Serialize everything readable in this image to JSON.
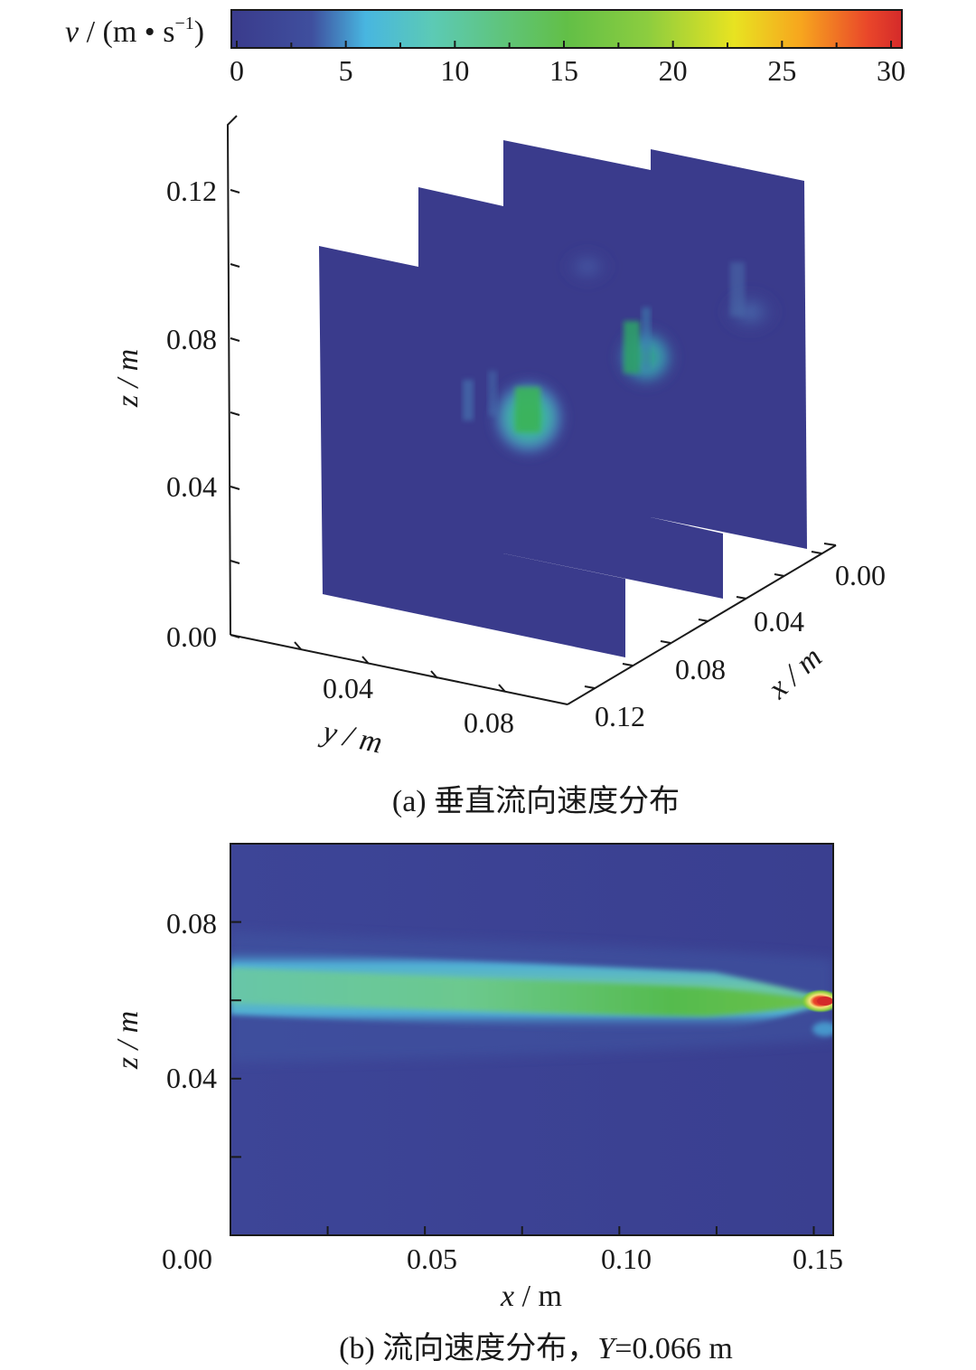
{
  "colors": {
    "colormap": [
      "#3a3b8c",
      "#3f4f9e",
      "#48b6e0",
      "#5ccab5",
      "#62bf47",
      "#8ccd3f",
      "#e8e321",
      "#f7a51e",
      "#e9462a",
      "#d42a2a"
    ],
    "background": "#3a3b8c",
    "axis": "#1a1a1a"
  },
  "chart_data": [
    {
      "type": "colorbar",
      "label_symbol": "v",
      "label_unit": " / (m • s",
      "label_sup": "−1",
      "label_close": ")",
      "ticks": [
        "0",
        "5",
        "10",
        "15",
        "20",
        "25",
        "30"
      ],
      "range": [
        0,
        30
      ]
    },
    {
      "type": "heatmap",
      "projection": "3d-slices",
      "caption": "(a) 垂直流向速度分布",
      "zlabel": "z / m",
      "ylabel": "y / m",
      "xlabel": "x / m",
      "z_ticks": [
        "0.00",
        "0.04",
        "0.08",
        "0.12"
      ],
      "y_ticks": [
        "0.04",
        "0.08"
      ],
      "x_ticks": [
        "0.00",
        "0.04",
        "0.08",
        "0.12"
      ],
      "slices": [
        {
          "x": 0.12,
          "peak_speed": 15,
          "peak_z": 0.06
        },
        {
          "x": 0.06,
          "peak_speed": 14,
          "peak_z": 0.08
        },
        {
          "x": 0.02,
          "peak_speed": 6,
          "peak_z": 0.09
        }
      ]
    },
    {
      "type": "heatmap",
      "projection": "2d",
      "caption_prefix": "(b) 流向速度分布，",
      "caption_var": "Y",
      "caption_value": "=0.066 m",
      "xlabel_var": "x",
      "xlabel_unit": " / m",
      "ylabel": "z / m",
      "x_ticks": [
        "0.00",
        "0.05",
        "0.10",
        "0.15"
      ],
      "z_ticks": [
        "0.04",
        "0.08"
      ],
      "xlim": [
        0,
        0.155
      ],
      "zlim": [
        0,
        0.1
      ],
      "jet": {
        "centerline_z": 0.06,
        "speed_core": 15,
        "speed_max": 30,
        "hotspot_x": 0.153
      }
    }
  ]
}
